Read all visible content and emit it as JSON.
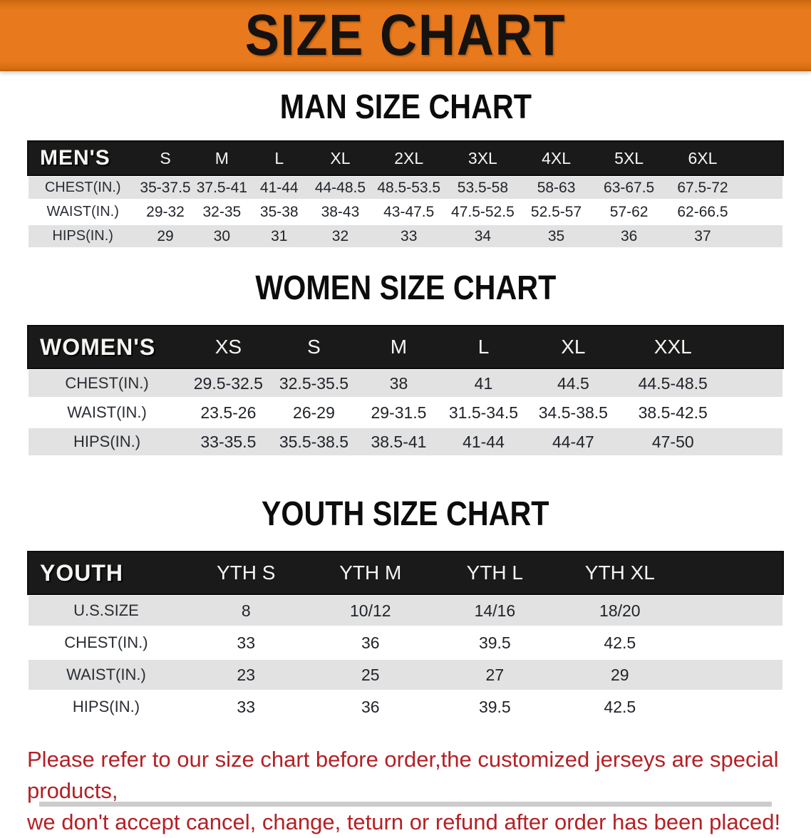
{
  "banner": {
    "title": "SIZE CHART"
  },
  "colors": {
    "banner_bg": "#e8791d",
    "header_bg": "#1a1a1a",
    "row_alt": "#e2e2e2",
    "footer_text": "#b42025"
  },
  "sections": [
    {
      "heading": "MAN SIZE CHART",
      "table": {
        "header_label": "MEN'S",
        "sizes": [
          "S",
          "M",
          "L",
          "XL",
          "2XL",
          "3XL",
          "4XL",
          "5XL",
          "6XL"
        ],
        "rows": [
          {
            "label": "CHEST(IN.)",
            "values": [
              "35-37.5",
              "37.5-41",
              "41-44",
              "44-48.5",
              "48.5-53.5",
              "53.5-58",
              "58-63",
              "63-67.5",
              "67.5-72"
            ]
          },
          {
            "label": "WAIST(IN.)",
            "values": [
              "29-32",
              "32-35",
              "35-38",
              "38-43",
              "43-47.5",
              "47.5-52.5",
              "52.5-57",
              "57-62",
              "62-66.5"
            ]
          },
          {
            "label": "HIPS(IN.)",
            "values": [
              "29",
              "30",
              "31",
              "32",
              "33",
              "34",
              "35",
              "36",
              "37"
            ]
          }
        ]
      }
    },
    {
      "heading": "WOMEN SIZE CHART",
      "table": {
        "header_label": "WOMEN'S",
        "sizes": [
          "XS",
          "S",
          "M",
          "L",
          "XL",
          "XXL"
        ],
        "rows": [
          {
            "label": "CHEST(IN.)",
            "values": [
              "29.5-32.5",
              "32.5-35.5",
              "38",
              "41",
              "44.5",
              "44.5-48.5"
            ]
          },
          {
            "label": "WAIST(IN.)",
            "values": [
              "23.5-26",
              "26-29",
              "29-31.5",
              "31.5-34.5",
              "34.5-38.5",
              "38.5-42.5"
            ]
          },
          {
            "label": "HIPS(IN.)",
            "values": [
              "33-35.5",
              "35.5-38.5",
              "38.5-41",
              "41-44",
              "44-47",
              "47-50"
            ]
          }
        ]
      }
    },
    {
      "heading": "YOUTH SIZE CHART",
      "table": {
        "header_label": "YOUTH",
        "sizes": [
          "YTH S",
          "YTH M",
          "YTH L",
          "YTH XL"
        ],
        "rows": [
          {
            "label": "U.S.SIZE",
            "values": [
              "8",
              "10/12",
              "14/16",
              "18/20"
            ]
          },
          {
            "label": "CHEST(IN.)",
            "values": [
              "33",
              "36",
              "39.5",
              "42.5"
            ]
          },
          {
            "label": "WAIST(IN.)",
            "values": [
              "23",
              "25",
              "27",
              "29"
            ]
          },
          {
            "label": "HIPS(IN.)",
            "values": [
              "33",
              "36",
              "39.5",
              "42.5"
            ]
          }
        ]
      }
    }
  ],
  "footer": {
    "line1": "Please refer to our size chart before order,the customized jerseys are special products,",
    "line2": "we don't accept cancel, change, teturn or refund after order has been placed!"
  }
}
